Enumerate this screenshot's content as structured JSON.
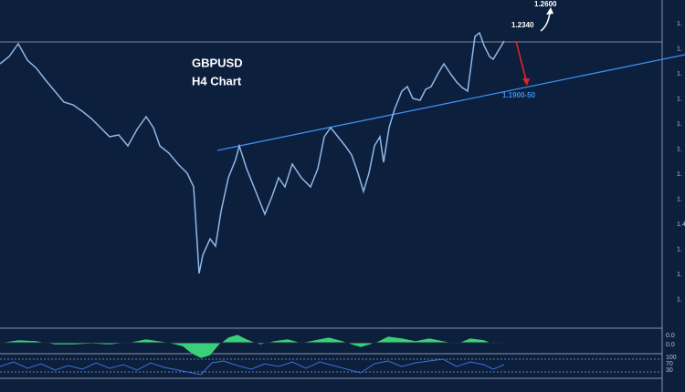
{
  "title": "GBPUSD",
  "subtitle": "H4 Chart",
  "annotations": {
    "target": "1.2600",
    "resistance": "1.2340",
    "support": "1.1900-50"
  },
  "price_axis_labels": [
    "1.",
    "1.",
    "1.",
    "1.",
    "1.",
    "1.",
    "1.",
    "1.",
    "1.4",
    "1.",
    "1.",
    "1."
  ],
  "macd_axis_labels": [
    "0.0",
    "0.0"
  ],
  "rsi_axis_labels": [
    "100",
    "70",
    "30"
  ]
}
